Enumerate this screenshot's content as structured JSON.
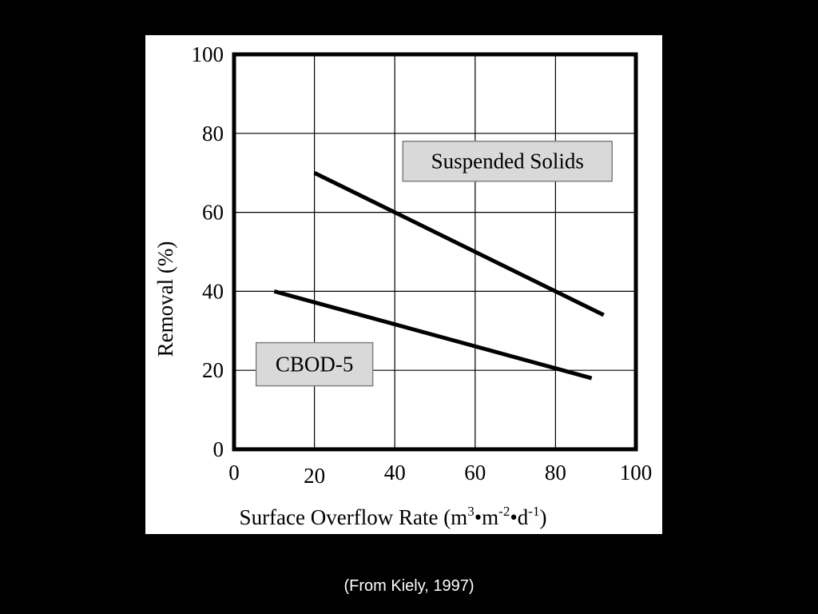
{
  "chart_data": {
    "type": "line",
    "xlabel": {
      "prefix": "Surface Overflow Rate (m",
      "sup1": "3",
      "mid1": "•m",
      "sup2": "-2",
      "mid2": "•d",
      "sup3": "-1",
      "suffix": ")"
    },
    "ylabel": "Removal (%)",
    "xlim": [
      0,
      100
    ],
    "ylim": [
      0,
      100
    ],
    "x_ticks": [
      0,
      20,
      40,
      60,
      80,
      100
    ],
    "y_ticks": [
      0,
      20,
      40,
      60,
      80,
      100
    ],
    "grid": true,
    "series": [
      {
        "name": "Suspended Solids",
        "x": [
          20,
          92
        ],
        "y": [
          70,
          34
        ]
      },
      {
        "name": "CBOD-5",
        "x": [
          10,
          89
        ],
        "y": [
          40,
          18
        ]
      }
    ],
    "annotations": [
      {
        "text": "Suspended Solids",
        "series": 0
      },
      {
        "text": "CBOD-5",
        "series": 1
      }
    ],
    "colors": {
      "line": "#000000",
      "grid": "#000000",
      "label_box_fill": "#d9d9d9",
      "label_box_stroke": "#808080"
    }
  },
  "caption": "(From Kiely, 1997)"
}
